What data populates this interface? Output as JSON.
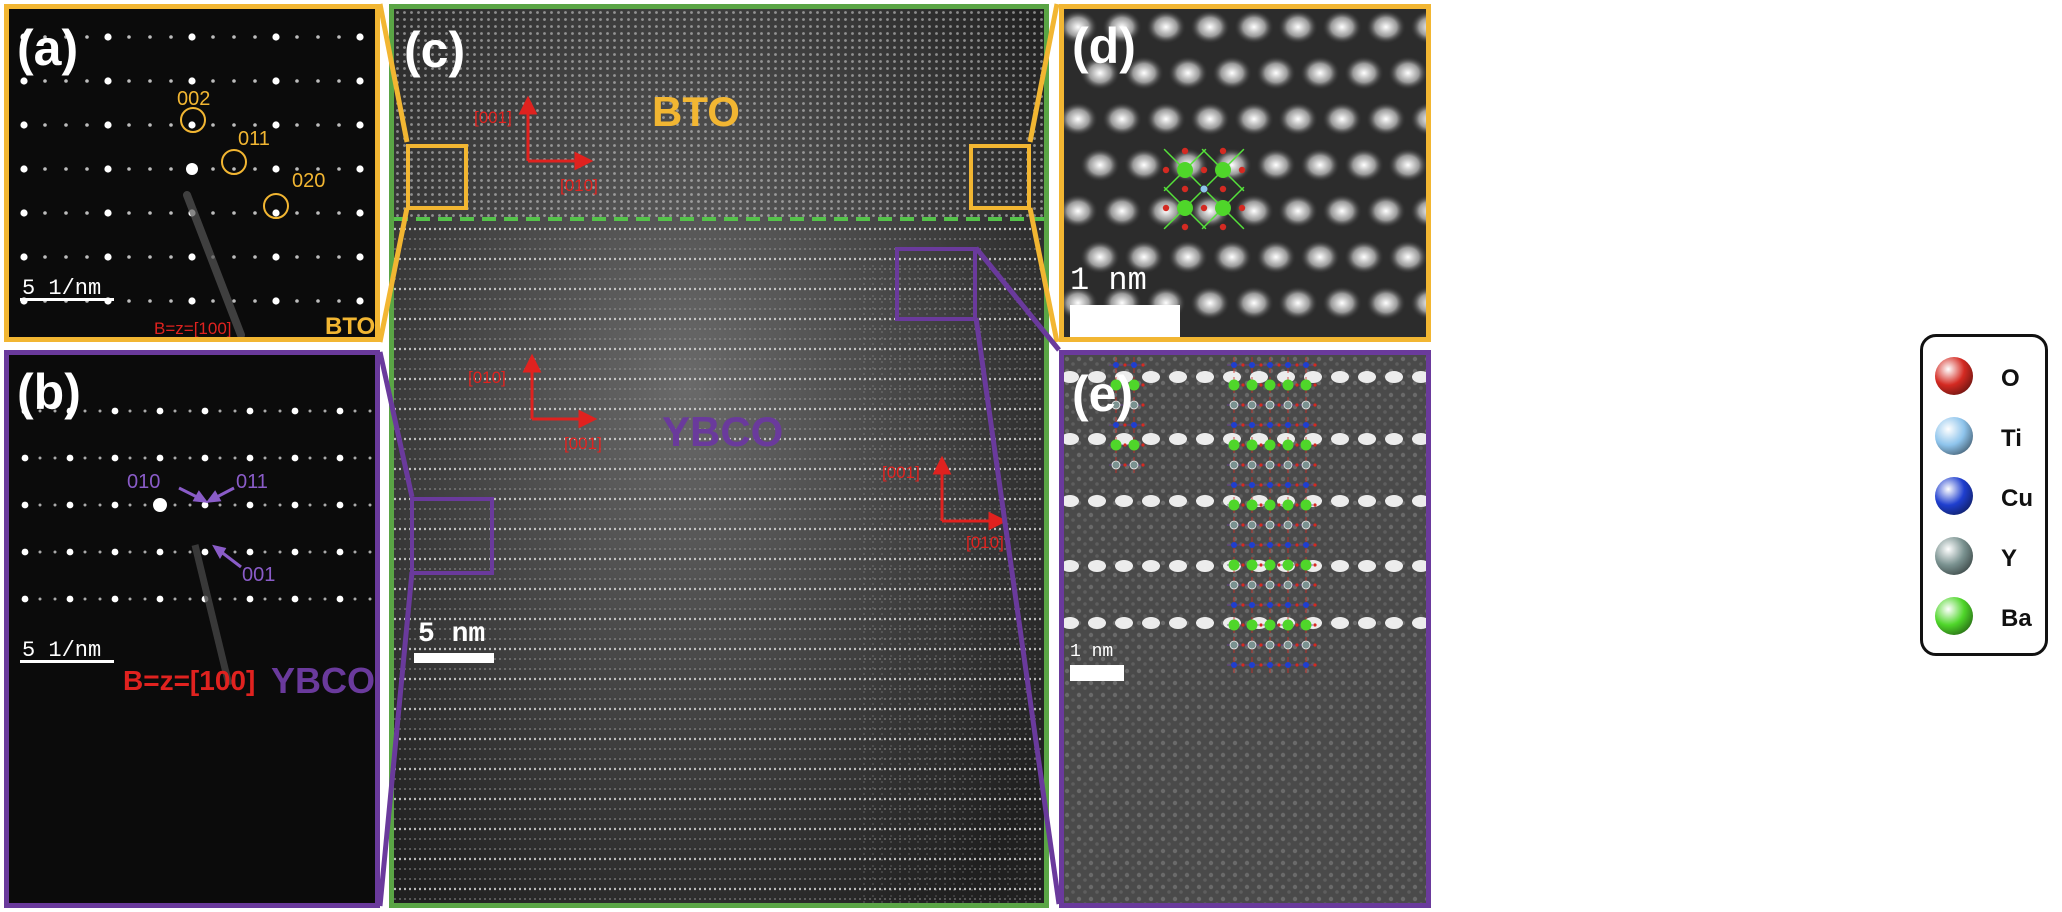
{
  "colors": {
    "bto": "#f2b632",
    "ybco": "#6a3a9c",
    "center": "#5aa545",
    "interface": "#55c34a",
    "direction": "#e0221f",
    "bto_atom": "#55e23a",
    "scale": "#ffffff"
  },
  "panels": {
    "a": {
      "label": "(a)",
      "spots": [
        {
          "label": "002"
        },
        {
          "label": "011"
        },
        {
          "label": "020"
        }
      ],
      "scale": "5 1/nm",
      "zone_axis": "B=z=[100]",
      "material": "BTO"
    },
    "b": {
      "label": "(b)",
      "spots": [
        {
          "label": "010"
        },
        {
          "label": "011"
        },
        {
          "label": "001"
        }
      ],
      "scale": "5 1/nm",
      "zone_axis": "B=z=[100]",
      "material": "YBCO"
    },
    "c": {
      "label": "(c)",
      "region_top": "BTO",
      "region_bottom": "YBCO",
      "axes_bto": {
        "vertical": "[001]",
        "horizontal": "[010]"
      },
      "axes_ybco_left": {
        "vertical": "[010]",
        "horizontal": "[001]"
      },
      "axes_ybco_right": {
        "vertical": "[001]",
        "horizontal": "[010]"
      },
      "scale": "5 nm"
    },
    "d": {
      "label": "(d)",
      "scale": "1 nm"
    },
    "e": {
      "label": "(e)",
      "scale": "1 nm"
    }
  },
  "legend": [
    {
      "symbol": "O",
      "color": "#d42a22"
    },
    {
      "symbol": "Ti",
      "color": "#8ec4ec"
    },
    {
      "symbol": "Cu",
      "color": "#1f3fcf"
    },
    {
      "symbol": "Y",
      "color": "#7a9290"
    },
    {
      "symbol": "Ba",
      "color": "#4fd62a"
    }
  ]
}
